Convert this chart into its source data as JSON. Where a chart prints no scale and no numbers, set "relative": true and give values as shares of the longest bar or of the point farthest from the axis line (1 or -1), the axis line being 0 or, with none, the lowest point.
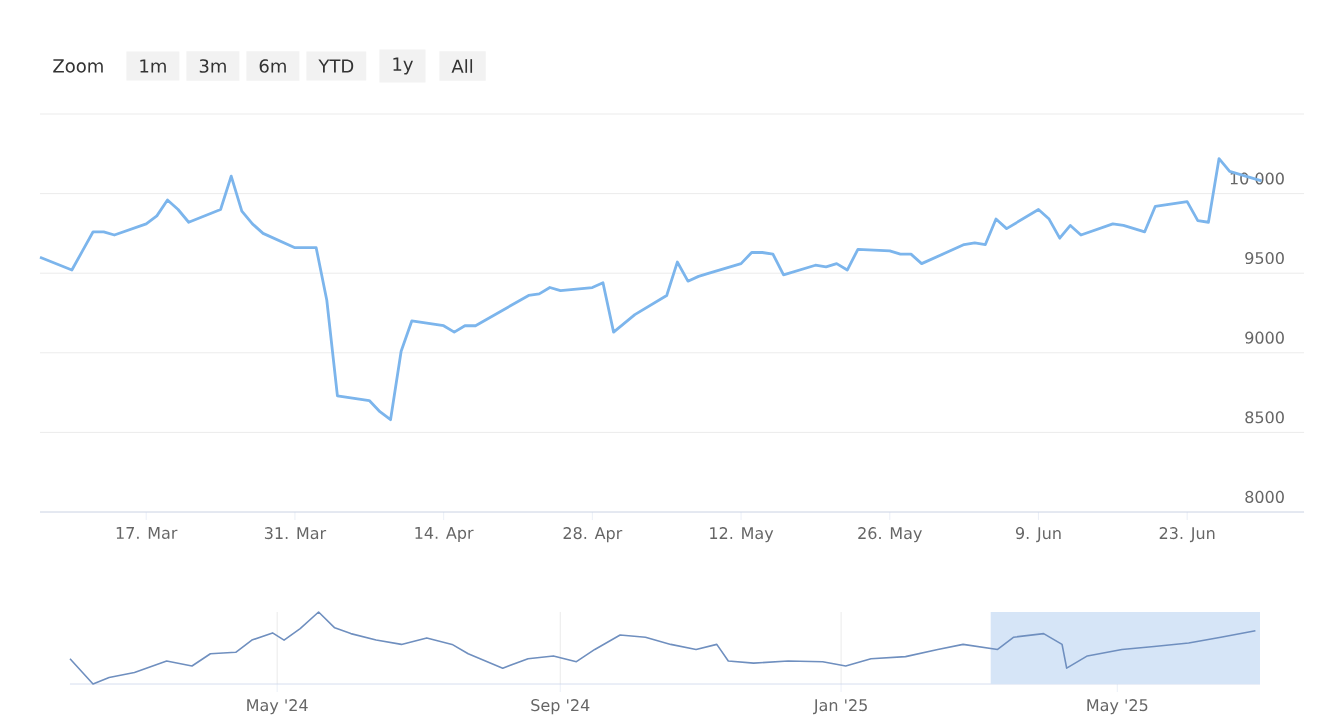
{
  "chart_data": [
    {
      "type": "line",
      "annotations": [
        "Zoom",
        "1m",
        "3m",
        "6m",
        "YTD",
        "1y",
        "All"
      ],
      "x": [
        "2025-03-07",
        "2025-03-10",
        "2025-03-11",
        "2025-03-12",
        "2025-03-13",
        "2025-03-14",
        "2025-03-17",
        "2025-03-18",
        "2025-03-19",
        "2025-03-20",
        "2025-03-21",
        "2025-03-24",
        "2025-03-25",
        "2025-03-26",
        "2025-03-27",
        "2025-03-28",
        "2025-03-31",
        "2025-04-01",
        "2025-04-02",
        "2025-04-03",
        "2025-04-04",
        "2025-04-07",
        "2025-04-08",
        "2025-04-09",
        "2025-04-10",
        "2025-04-11",
        "2025-04-14",
        "2025-04-15",
        "2025-04-16",
        "2025-04-17",
        "2025-04-22",
        "2025-04-23",
        "2025-04-24",
        "2025-04-25",
        "2025-04-28",
        "2025-04-29",
        "2025-04-30",
        "2025-05-02",
        "2025-05-05",
        "2025-05-06",
        "2025-05-07",
        "2025-05-08",
        "2025-05-09",
        "2025-05-12",
        "2025-05-13",
        "2025-05-14",
        "2025-05-15",
        "2025-05-16",
        "2025-05-19",
        "2025-05-20",
        "2025-05-21",
        "2025-05-22",
        "2025-05-23",
        "2025-05-26",
        "2025-05-27",
        "2025-05-28",
        "2025-05-29",
        "2025-06-02",
        "2025-06-03",
        "2025-06-04",
        "2025-06-05",
        "2025-06-06",
        "2025-06-09",
        "2025-06-10",
        "2025-06-11",
        "2025-06-12",
        "2025-06-13",
        "2025-06-16",
        "2025-06-17",
        "2025-06-18",
        "2025-06-19",
        "2025-06-20",
        "2025-06-23",
        "2025-06-24",
        "2025-06-25",
        "2025-06-26",
        "2025-06-27",
        "2025-06-30"
      ],
      "values": [
        9600,
        9520,
        9640,
        9760,
        9760,
        9740,
        9810,
        9860,
        9960,
        9900,
        9820,
        9900,
        10110,
        9890,
        9810,
        9750,
        9660,
        9660,
        9660,
        9330,
        8730,
        8700,
        8630,
        8580,
        9010,
        9200,
        9170,
        9130,
        9170,
        9170,
        9360,
        9370,
        9410,
        9390,
        9410,
        9440,
        9130,
        9240,
        9360,
        9570,
        9450,
        9480,
        9500,
        9560,
        9630,
        9630,
        9620,
        9490,
        9550,
        9540,
        9560,
        9520,
        9650,
        9640,
        9620,
        9620,
        9560,
        9680,
        9690,
        9680,
        9840,
        9780,
        9900,
        9840,
        9720,
        9800,
        9740,
        9810,
        9800,
        9780,
        9760,
        9920,
        9950,
        9830,
        9820,
        10220,
        10140,
        10080
      ],
      "color": "#7cb5ec",
      "grid": "y",
      "xlim": [
        "2025-03-07",
        "2025-07-04"
      ],
      "xticks": [
        {
          "value": "2025-03-17",
          "label": "17. Mar"
        },
        {
          "value": "2025-03-31",
          "label": "31. Mar"
        },
        {
          "value": "2025-04-14",
          "label": "14. Apr"
        },
        {
          "value": "2025-04-28",
          "label": "28. Apr"
        },
        {
          "value": "2025-05-12",
          "label": "12. May"
        },
        {
          "value": "2025-05-26",
          "label": "26. May"
        },
        {
          "value": "2025-06-09",
          "label": "9. Jun"
        },
        {
          "value": "2025-06-23",
          "label": "23. Jun"
        }
      ],
      "ylim": [
        8000,
        10500
      ],
      "yticks": [
        8000,
        8500,
        9000,
        9500,
        {
          "value": 10000,
          "label": "10 000"
        },
        {
          "value": 10500,
          "label": null
        }
      ]
    },
    {
      "type": "line",
      "relative": true,
      "color": "#6f8fbf",
      "grid": "x",
      "x": [
        "2024-02-01",
        "2024-02-11",
        "2024-02-18",
        "2024-02-29",
        "2024-03-14",
        "2024-03-25",
        "2024-04-02",
        "2024-04-13",
        "2024-04-20",
        "2024-04-29",
        "2024-05-04",
        "2024-05-11",
        "2024-05-19",
        "2024-05-26",
        "2024-06-02",
        "2024-06-13",
        "2024-06-24",
        "2024-07-05",
        "2024-07-16",
        "2024-07-23",
        "2024-08-07",
        "2024-08-18",
        "2024-08-29",
        "2024-09-08",
        "2024-09-16",
        "2024-09-27",
        "2024-10-08",
        "2024-10-19",
        "2024-10-30",
        "2024-11-08",
        "2024-11-13",
        "2024-11-24",
        "2024-12-09",
        "2024-12-24",
        "2025-01-03",
        "2025-01-14",
        "2025-01-29",
        "2025-02-12",
        "2025-02-23",
        "2025-03-10",
        "2025-03-17",
        "2025-03-30",
        "2025-04-07",
        "2025-04-09",
        "2025-04-18",
        "2025-05-03",
        "2025-05-17",
        "2025-06-01",
        "2025-06-15",
        "2025-06-30"
      ],
      "values": [
        0.35,
        0,
        0.09,
        0.16,
        0.32,
        0.25,
        0.42,
        0.44,
        0.61,
        0.71,
        0.61,
        0.77,
        1,
        0.78,
        0.7,
        0.61,
        0.55,
        0.64,
        0.55,
        0.42,
        0.22,
        0.35,
        0.39,
        0.31,
        0.48,
        0.68,
        0.65,
        0.55,
        0.48,
        0.55,
        0.32,
        0.29,
        0.32,
        0.31,
        0.25,
        0.35,
        0.38,
        0.48,
        0.55,
        0.48,
        0.65,
        0.7,
        0.55,
        0.22,
        0.39,
        0.48,
        0.52,
        0.57,
        0.65,
        0.74
      ],
      "xlim": [
        "2024-02-01",
        "2025-07-02"
      ],
      "xticks": [
        {
          "value": "2024-05-01",
          "label": "May '24"
        },
        {
          "value": "2024-09-01",
          "label": "Sep '24"
        },
        {
          "value": "2025-01-01",
          "label": "Jan '25"
        },
        {
          "value": "2025-05-01",
          "label": "May '25"
        }
      ],
      "bands": [
        {
          "axis": "x",
          "from": "2025-03-07",
          "to": "2025-07-02",
          "color": "#d6e5f7"
        }
      ]
    }
  ]
}
